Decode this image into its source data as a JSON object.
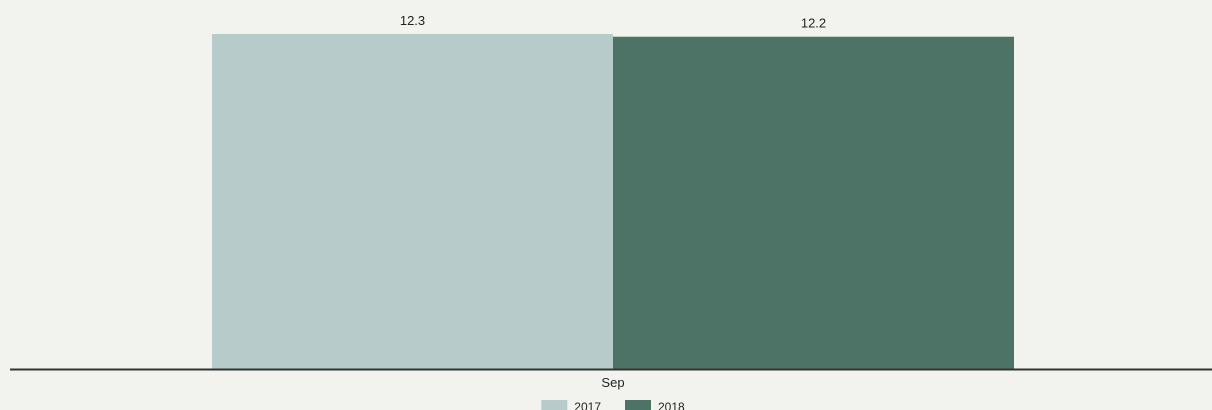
{
  "chart_data": {
    "type": "bar",
    "categories": [
      "Sep"
    ],
    "series": [
      {
        "name": "2017",
        "values": [
          12.3
        ],
        "color": "#b7ccca"
      },
      {
        "name": "2018",
        "values": [
          12.2
        ],
        "color": "#4d7366"
      }
    ],
    "value_labels": [
      "12.3",
      "12.2"
    ],
    "title": "",
    "xlabel": "",
    "ylabel": "",
    "ylim": [
      0,
      12.3
    ],
    "grid": false,
    "legend_position": "bottom-center",
    "axis_color": "#333333"
  }
}
